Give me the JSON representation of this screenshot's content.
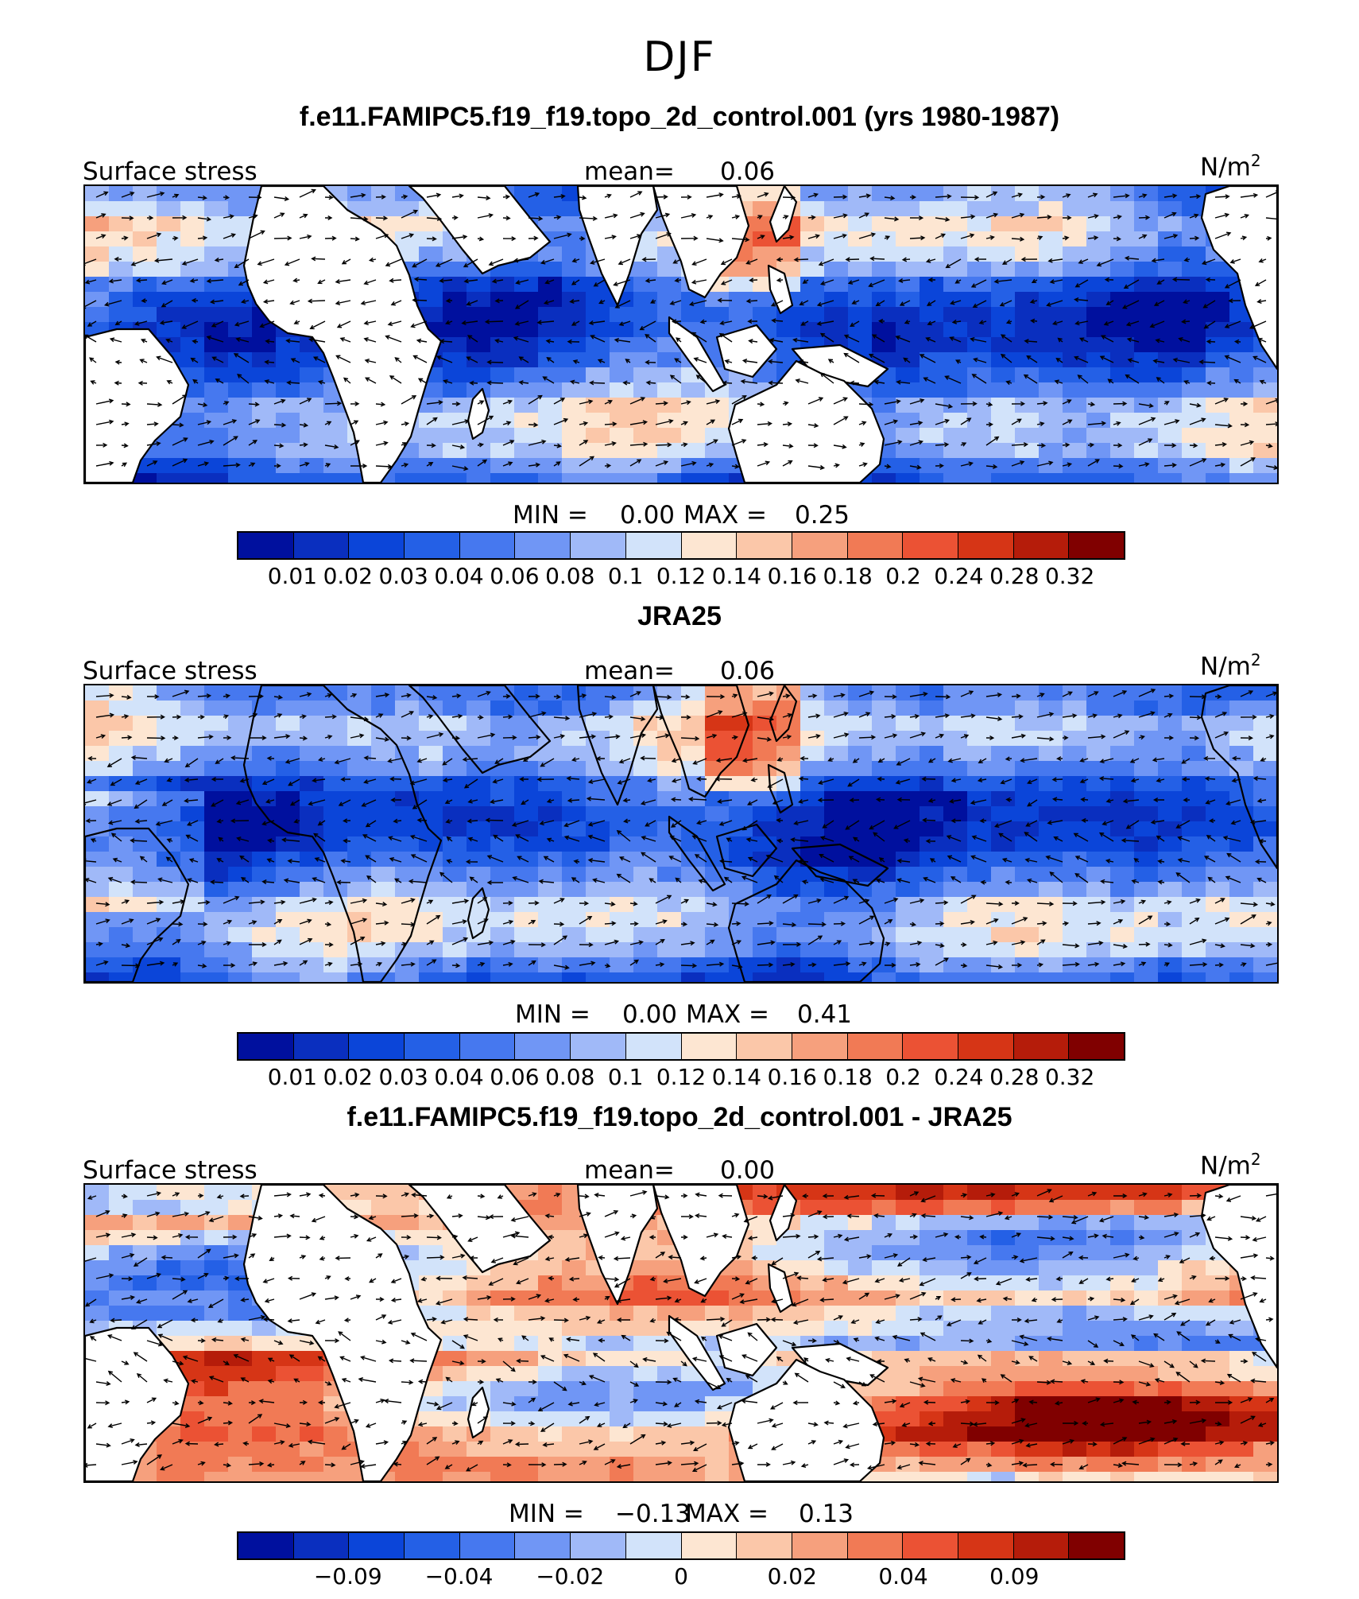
{
  "title": "DJF",
  "colors": {
    "levels": [
      "#00109e",
      "#0a2fbf",
      "#0b45d9",
      "#2460e6",
      "#4678ef",
      "#7096f5",
      "#a0b9f8",
      "#d2e3fa",
      "#fde6d2",
      "#fbc7a9",
      "#f6a07d",
      "#f17a55",
      "#eb5234",
      "#d63516",
      "#b51c0a",
      "#800000"
    ],
    "land": "#ffffff",
    "coast": "#000000"
  },
  "panels": [
    {
      "title": "f.e11.FAMIPC5.f19_f19.topo_2d_control.001 (yrs 1980-1987)",
      "variable": "Surface stress",
      "mean_label": "mean=",
      "mean": "0.06",
      "units": "N/m",
      "units_exp": "2",
      "min_label": "MIN =",
      "min": "0.00",
      "max_label": "MAX =",
      "max": "0.25",
      "colorbar_ticks": [
        "0.01",
        "0.02",
        "0.03",
        "0.04",
        "0.06",
        "0.08",
        "0.1",
        "0.12",
        "0.14",
        "0.16",
        "0.18",
        "0.2",
        "0.24",
        "0.28",
        "0.32"
      ]
    },
    {
      "title": "JRA25",
      "variable": "Surface stress",
      "mean_label": "mean=",
      "mean": "0.06",
      "units": "N/m",
      "units_exp": "2",
      "min_label": "MIN =",
      "min": "0.00",
      "max_label": "MAX =",
      "max": "0.41",
      "colorbar_ticks": [
        "0.01",
        "0.02",
        "0.03",
        "0.04",
        "0.06",
        "0.08",
        "0.1",
        "0.12",
        "0.14",
        "0.16",
        "0.18",
        "0.2",
        "0.24",
        "0.28",
        "0.32"
      ]
    },
    {
      "title": "f.e11.FAMIPC5.f19_f19.topo_2d_control.001 - JRA25",
      "variable": "Surface stress",
      "mean_label": "mean=",
      "mean": "0.00",
      "units": "N/m",
      "units_exp": "2",
      "min_label": "MIN =",
      "min": "−0.13",
      "max_label": "MAX =",
      "max": "0.13",
      "colorbar_ticks": [
        "−0.09",
        "−0.04",
        "−0.02",
        "0",
        "0.02",
        "0.04",
        "0.09"
      ]
    }
  ]
}
